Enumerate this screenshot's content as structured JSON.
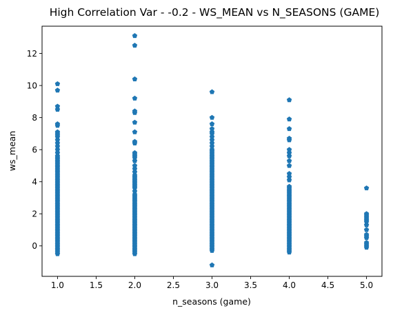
{
  "chart_data": {
    "type": "scatter",
    "title": "High Correlation Var - -0.2 - WS_MEAN vs N_SEASONS (GAME)",
    "xlabel": "n_seasons (game)",
    "ylabel": "ws_mean",
    "xlim": [
      0.8,
      5.2
    ],
    "ylim": [
      -1.9,
      13.7
    ],
    "xticks": [
      1.0,
      1.5,
      2.0,
      2.5,
      3.0,
      3.5,
      4.0,
      4.5,
      5.0
    ],
    "xtick_labels": [
      "1.0",
      "1.5",
      "2.0",
      "2.5",
      "3.0",
      "3.5",
      "4.0",
      "4.5",
      "5.0"
    ],
    "yticks": [
      0,
      2,
      4,
      6,
      8,
      10,
      12
    ],
    "ytick_labels": [
      "0",
      "2",
      "4",
      "6",
      "8",
      "10",
      "12"
    ],
    "grid": false,
    "marker": "pentagon",
    "color": "#1f77b4",
    "series": [
      {
        "values": [
          {
            "x": 1,
            "y": [
              -0.5,
              -0.4,
              -0.3,
              -0.2,
              -0.1,
              0.0,
              0.1,
              0.2,
              0.3,
              0.4,
              0.5,
              0.6,
              0.7,
              0.8,
              0.9,
              1.0,
              1.1,
              1.2,
              1.3,
              1.4,
              1.5,
              1.6,
              1.7,
              1.8,
              1.9,
              2.0,
              2.1,
              2.2,
              2.3,
              2.4,
              2.5,
              2.6,
              2.7,
              2.8,
              2.9,
              3.0,
              3.1,
              3.2,
              3.3,
              3.4,
              3.5,
              3.6,
              3.7,
              3.8,
              3.9,
              4.0,
              4.1,
              4.2,
              4.3,
              4.4,
              4.5,
              4.6,
              4.7,
              4.8,
              4.9,
              5.0,
              5.1,
              5.2,
              5.3,
              5.4,
              5.5,
              5.6,
              5.8,
              6.0,
              6.2,
              6.4,
              6.6,
              6.8,
              6.9,
              7.0,
              7.1,
              7.5,
              7.6,
              8.5,
              8.7,
              9.7,
              10.1
            ]
          },
          {
            "x": 2,
            "y": [
              -0.5,
              -0.4,
              -0.3,
              -0.2,
              -0.1,
              0.0,
              0.1,
              0.2,
              0.3,
              0.4,
              0.5,
              0.6,
              0.7,
              0.8,
              0.9,
              1.0,
              1.1,
              1.2,
              1.3,
              1.4,
              1.5,
              1.6,
              1.7,
              1.8,
              1.9,
              2.0,
              2.1,
              2.2,
              2.3,
              2.4,
              2.5,
              2.6,
              2.7,
              2.8,
              2.9,
              3.0,
              3.1,
              3.2,
              3.4,
              3.6,
              3.7,
              3.8,
              3.9,
              4.0,
              4.1,
              4.2,
              4.3,
              4.4,
              4.6,
              4.8,
              5.0,
              5.3,
              5.5,
              5.6,
              5.7,
              5.8,
              6.4,
              6.5,
              7.1,
              7.7,
              8.3,
              8.4,
              9.2,
              10.4,
              12.5,
              13.1
            ]
          },
          {
            "x": 3,
            "y": [
              -1.2,
              -0.3,
              -0.2,
              -0.1,
              0.0,
              0.1,
              0.2,
              0.3,
              0.4,
              0.5,
              0.6,
              0.7,
              0.8,
              0.9,
              1.0,
              1.1,
              1.2,
              1.3,
              1.4,
              1.5,
              1.6,
              1.7,
              1.8,
              1.9,
              2.0,
              2.1,
              2.2,
              2.3,
              2.4,
              2.5,
              2.6,
              2.7,
              2.8,
              2.9,
              3.0,
              3.1,
              3.2,
              3.3,
              3.4,
              3.5,
              3.6,
              3.7,
              3.8,
              3.9,
              4.0,
              4.1,
              4.2,
              4.3,
              4.4,
              4.5,
              4.6,
              4.7,
              4.8,
              4.9,
              5.0,
              5.1,
              5.2,
              5.3,
              5.4,
              5.5,
              5.6,
              5.7,
              5.8,
              5.9,
              6.0,
              6.2,
              6.4,
              6.6,
              6.8,
              7.0,
              7.1,
              7.3,
              7.6,
              8.0,
              9.6
            ]
          },
          {
            "x": 4,
            "y": [
              -0.4,
              -0.3,
              -0.2,
              -0.1,
              0.0,
              0.1,
              0.2,
              0.3,
              0.4,
              0.5,
              0.6,
              0.7,
              0.8,
              0.9,
              1.0,
              1.1,
              1.2,
              1.3,
              1.4,
              1.5,
              1.6,
              1.7,
              1.8,
              1.9,
              2.0,
              2.1,
              2.2,
              2.3,
              2.4,
              2.5,
              2.6,
              2.7,
              2.8,
              2.9,
              3.0,
              3.1,
              3.2,
              3.3,
              3.4,
              3.5,
              3.6,
              3.7,
              4.1,
              4.3,
              4.5,
              5.0,
              5.3,
              5.6,
              5.8,
              6.0,
              6.6,
              6.7,
              7.3,
              7.9,
              9.1
            ]
          },
          {
            "x": 5,
            "y": [
              -0.1,
              0.0,
              0.1,
              0.2,
              0.5,
              0.6,
              0.7,
              1.0,
              1.3,
              1.5,
              1.6,
              1.7,
              1.8,
              1.9,
              2.0,
              3.6
            ]
          }
        ]
      }
    ]
  }
}
